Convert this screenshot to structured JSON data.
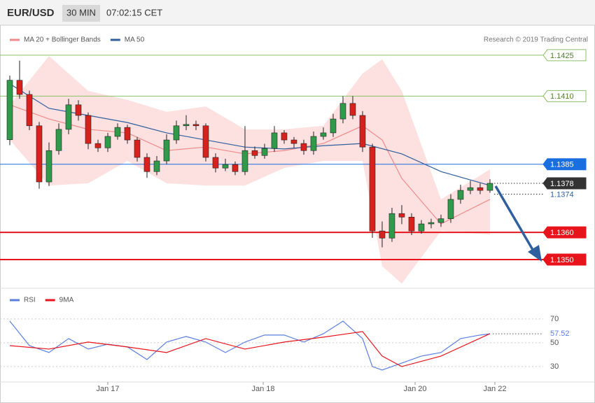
{
  "header": {
    "symbol": "EUR/USD",
    "interval": "30 MIN",
    "time": "07:02:15 CET"
  },
  "credit": "Research © 2019 Trading Central",
  "chart_data": [
    {
      "type": "candlestick",
      "x": [
        0,
        1,
        2,
        3,
        4,
        5,
        6,
        7,
        8,
        9,
        10,
        11,
        12,
        13,
        14,
        15,
        16,
        17,
        18,
        19,
        20,
        21,
        22,
        23,
        24,
        25,
        26,
        27,
        28,
        29,
        30,
        31,
        32,
        33,
        34,
        35,
        36,
        37,
        38,
        39,
        40,
        41,
        42,
        43,
        44,
        45,
        46,
        47,
        48,
        49
      ],
      "open": [
        1.1394,
        1.14158,
        1.14106,
        1.13991,
        1.13785,
        1.139,
        1.13978,
        1.14068,
        1.14029,
        1.13926,
        1.1391,
        1.13952,
        1.13985,
        1.13939,
        1.13875,
        1.13823,
        1.13862,
        1.13939,
        1.13991,
        1.13996,
        1.13991,
        1.13875,
        1.13836,
        1.13849,
        1.13823,
        1.139,
        1.13882,
        1.13908,
        1.13965,
        1.13939,
        1.13926,
        1.139,
        1.13952,
        1.13965,
        1.14016,
        1.14073,
        1.14029,
        1.13913,
        1.13605,
        1.13579,
        1.13669,
        1.13656,
        1.13605,
        1.13631,
        1.13636,
        1.1365,
        1.13721,
        1.13754,
        1.13764,
        1.13754
      ],
      "high": [
        1.14175,
        1.1423,
        1.1412,
        1.14005,
        1.1393,
        1.14,
        1.1409,
        1.14085,
        1.1404,
        1.1394,
        1.13965,
        1.14,
        1.13995,
        1.1395,
        1.1389,
        1.1388,
        1.1396,
        1.1401,
        1.1403,
        1.1401,
        1.14,
        1.1389,
        1.1387,
        1.1386,
        1.1399,
        1.13915,
        1.13925,
        1.1399,
        1.13975,
        1.1395,
        1.1394,
        1.1397,
        1.13985,
        1.14035,
        1.141,
        1.141,
        1.14045,
        1.13925,
        1.1364,
        1.1369,
        1.137,
        1.1367,
        1.13645,
        1.1365,
        1.13665,
        1.1374,
        1.13775,
        1.1379,
        1.1378,
        1.13795
      ],
      "low": [
        1.1392,
        1.1409,
        1.13975,
        1.1376,
        1.1377,
        1.13885,
        1.1396,
        1.1401,
        1.13905,
        1.13895,
        1.13895,
        1.1394,
        1.13925,
        1.1386,
        1.138,
        1.1381,
        1.1385,
        1.13925,
        1.13975,
        1.13975,
        1.1386,
        1.1382,
        1.13825,
        1.1381,
        1.1381,
        1.1387,
        1.1387,
        1.13895,
        1.13925,
        1.1391,
        1.13885,
        1.13885,
        1.1394,
        1.1395,
        1.14,
        1.14015,
        1.13895,
        1.1358,
        1.13545,
        1.13565,
        1.1363,
        1.1359,
        1.13595,
        1.13615,
        1.1362,
        1.13635,
        1.13705,
        1.1374,
        1.1374,
        1.13745
      ],
      "close": [
        1.14158,
        1.14106,
        1.13991,
        1.13785,
        1.139,
        1.13978,
        1.14068,
        1.14029,
        1.13926,
        1.1391,
        1.13952,
        1.13985,
        1.13939,
        1.13875,
        1.13823,
        1.13862,
        1.13939,
        1.13991,
        1.13996,
        1.13991,
        1.13875,
        1.13836,
        1.13849,
        1.13823,
        1.139,
        1.13882,
        1.13908,
        1.13965,
        1.13939,
        1.13926,
        1.139,
        1.13952,
        1.13965,
        1.14016,
        1.14073,
        1.14029,
        1.13913,
        1.13605,
        1.13579,
        1.13669,
        1.13656,
        1.13605,
        1.13631,
        1.13636,
        1.1365,
        1.13721,
        1.13754,
        1.13764,
        1.13754,
        1.1378
      ],
      "up_color": "#2e9a4a",
      "down_color": "#d8201c",
      "series": [
        {
          "name": "MA 20 + Bollinger Bands",
          "color": "#f08a8a",
          "band_color": "#fde0e0",
          "x": [
            0,
            4,
            8,
            12,
            16,
            20,
            24,
            28,
            32,
            36,
            38,
            40,
            44,
            49
          ],
          "values": [
            1.14068,
            1.14016,
            1.13978,
            1.13965,
            1.139,
            1.13913,
            1.13888,
            1.139,
            1.13926,
            1.13991,
            1.13939,
            1.13798,
            1.13631,
            1.13721
          ],
          "upper": [
            1.14068,
            1.14247,
            1.14119,
            1.14086,
            1.14042,
            1.14062,
            1.13978,
            1.13978,
            1.13991,
            1.14183,
            1.14235,
            1.14119,
            1.13721,
            1.13831
          ],
          "lower": [
            1.13939,
            1.13772,
            1.1378,
            1.13862,
            1.1378,
            1.13772,
            1.13772,
            1.13836,
            1.13862,
            1.13862,
            1.13476,
            1.13412,
            1.13605,
            1.13592
          ]
        },
        {
          "name": "MA 50",
          "color": "#2f5f9e",
          "x": [
            0,
            4,
            8,
            12,
            16,
            20,
            24,
            28,
            32,
            36,
            40,
            44,
            49
          ],
          "values": [
            1.14145,
            1.14055,
            1.14029,
            1.14003,
            1.13965,
            1.13939,
            1.13913,
            1.13906,
            1.13918,
            1.13926,
            1.13888,
            1.13823,
            1.13772
          ]
        }
      ],
      "levels": [
        {
          "value": 1.1425,
          "label": "1.1425",
          "color": "#8cc068",
          "line": "solid",
          "box": "outline"
        },
        {
          "value": 1.141,
          "label": "1.1410",
          "color": "#8cc068",
          "line": "solid",
          "box": "outline"
        },
        {
          "value": 1.1385,
          "label": "1.1385",
          "color": "#1a6fe0",
          "line": "solid",
          "box": "filled"
        },
        {
          "value": 1.1378,
          "label": "1.1378",
          "color": "#333333",
          "line": "dotted",
          "box": "filled"
        },
        {
          "value": 1.1374,
          "label": "1.1374",
          "color": "#2f5f9e",
          "line": "dotted",
          "box": "none"
        },
        {
          "value": 1.136,
          "label": "1.1360",
          "color": "#e8141b",
          "line": "thick",
          "box": "filled"
        },
        {
          "value": 1.135,
          "label": "1.1350",
          "color": "#e8141b",
          "line": "thick",
          "box": "filled"
        }
      ],
      "xlim": [
        -1,
        54.36
      ],
      "ylim": [
        1.134,
        1.14355
      ]
    },
    {
      "type": "line",
      "series": [
        {
          "name": "RSI",
          "color": "#5b7fe0",
          "x": [
            0,
            2,
            4,
            6,
            8,
            10,
            12,
            14,
            16,
            18,
            20,
            22,
            24,
            26,
            28,
            30,
            32,
            34,
            36,
            37,
            38,
            40,
            42,
            44,
            46,
            48,
            49
          ],
          "values": [
            68.2,
            47.6,
            41.8,
            53.5,
            44.7,
            48.8,
            46.5,
            35.9,
            50.6,
            55.3,
            50.6,
            41.8,
            50.6,
            56.5,
            56.5,
            50.6,
            57.6,
            68.2,
            53.5,
            30,
            27.1,
            32.9,
            38.8,
            41.8,
            53.5,
            56.5,
            57.52
          ]
        },
        {
          "name": "9MA",
          "color": "#e8141b",
          "x": [
            0,
            4,
            8,
            12,
            16,
            20,
            24,
            28,
            32,
            36,
            38,
            40,
            44,
            49
          ],
          "values": [
            47.6,
            44.7,
            50.6,
            46.5,
            41.8,
            53.5,
            44.7,
            50.6,
            54.7,
            59.4,
            38.8,
            30,
            38.8,
            57.6
          ]
        }
      ],
      "xlim": [
        -1,
        54.36
      ],
      "ylim": [
        17.6,
        91.1
      ],
      "yticks": [
        30,
        50,
        70
      ],
      "xticks": [
        {
          "value": 10,
          "label": "Jan 17"
        },
        {
          "value": 25.86,
          "label": "Jan 18"
        },
        {
          "value": 41.36,
          "label": "Jan 20"
        },
        {
          "value": 49.5,
          "label": "Jan 22"
        }
      ]
    }
  ]
}
